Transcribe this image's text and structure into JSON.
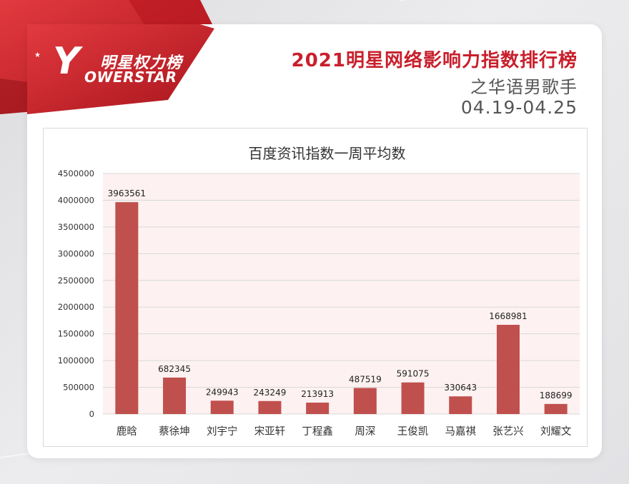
{
  "header": {
    "logo_cn": "明星权力榜",
    "logo_en": "OWERSTAR",
    "logo_letter": "Y",
    "title": "2021明星网络影响力指数排行榜",
    "subtitle": "之华语男歌手",
    "date_range": "04.19-04.25"
  },
  "colors": {
    "accent": "#c8202c",
    "bar": "#c0504d",
    "plot_bg": "#fdf1f1",
    "grid": "#d9d9d9"
  },
  "chart_data": {
    "type": "bar",
    "title": "百度资讯指数一周平均数",
    "categories": [
      "鹿晗",
      "蔡徐坤",
      "刘宇宁",
      "宋亚轩",
      "丁程鑫",
      "周深",
      "王俊凯",
      "马嘉祺",
      "张艺兴",
      "刘耀文"
    ],
    "series": [
      {
        "values": [
          3963561,
          682345,
          249943,
          243249,
          213913,
          487519,
          591075,
          330643,
          1668981,
          188699
        ]
      }
    ],
    "data_labels": [
      "3963561",
      "682345",
      "249943",
      "243249",
      "213913",
      "487519",
      "591075",
      "330643",
      "1668981",
      "188699"
    ],
    "y_ticks": [
      "0",
      "500000",
      "1000000",
      "1500000",
      "2000000",
      "2500000",
      "3000000",
      "3500000",
      "4000000",
      "4500000"
    ],
    "ylim": [
      0,
      4500000
    ],
    "grid": true,
    "legend": "none"
  }
}
